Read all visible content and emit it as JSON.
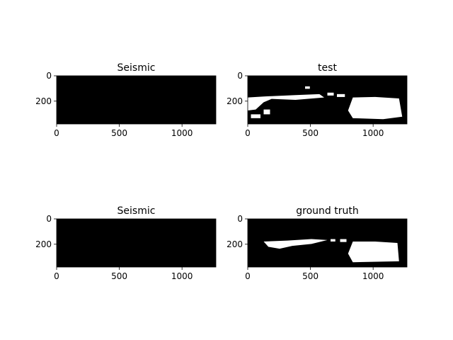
{
  "chart_data": [
    {
      "type": "heatmap",
      "title": "Seismic",
      "xlabel": "",
      "ylabel": "",
      "xlim": [
        0,
        1270
      ],
      "ylim": [
        0,
        380
      ],
      "x_ticks": [
        0,
        500,
        1000
      ],
      "y_ticks": [
        0,
        200
      ],
      "colormap": "seismic",
      "overlay": "black contour of test mask",
      "grid": false
    },
    {
      "type": "heatmap",
      "title": "test",
      "xlabel": "",
      "ylabel": "",
      "xlim": [
        0,
        1270
      ],
      "ylim": [
        0,
        380
      ],
      "x_ticks": [
        0,
        500,
        1000
      ],
      "y_ticks": [
        0,
        200
      ],
      "colormap": "binary",
      "grid": false
    },
    {
      "type": "heatmap",
      "title": "Seismic",
      "xlabel": "",
      "ylabel": "",
      "xlim": [
        0,
        1270
      ],
      "ylim": [
        0,
        380
      ],
      "x_ticks": [
        0,
        500,
        1000
      ],
      "y_ticks": [
        0,
        200
      ],
      "colormap": "seismic",
      "overlay": "black contour of ground truth mask",
      "grid": false
    },
    {
      "type": "heatmap",
      "title": "ground truth",
      "xlabel": "",
      "ylabel": "",
      "xlim": [
        0,
        1270
      ],
      "ylim": [
        0,
        380
      ],
      "x_ticks": [
        0,
        500,
        1000
      ],
      "y_ticks": [
        0,
        200
      ],
      "colormap": "binary",
      "grid": false
    }
  ],
  "colors": {
    "deep_blue": "#1515d8",
    "mid_blue": "#5a6fe6",
    "light_blue": "#c9d2f6",
    "white": "#ffffff",
    "light_red": "#f4a8a0",
    "red": "#e01010",
    "dark_red": "#a80000",
    "navy": "#000060",
    "mask_black": "#000000",
    "mask_white": "#ffffff"
  }
}
